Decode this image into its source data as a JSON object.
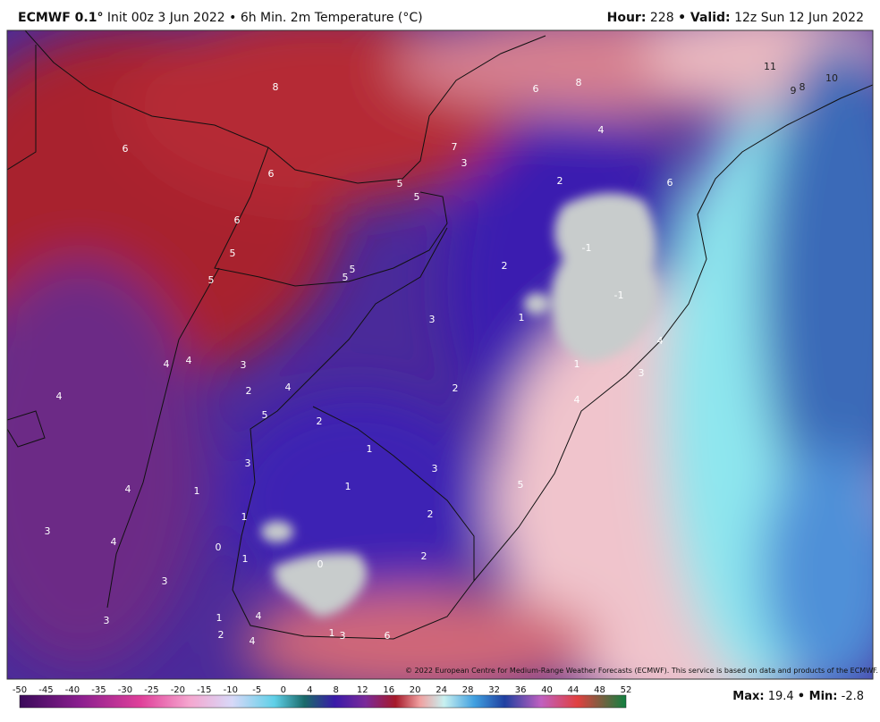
{
  "header": {
    "model": "ECMWF 0.1°",
    "description": "Init 00z 3 Jun 2022 • 6h Min. 2m Temperature (°C)",
    "hour_label": "Hour:",
    "hour": "228",
    "valid_label": "• Valid:",
    "valid": "12z Sun 12 Jun 2022"
  },
  "map": {
    "labels": [
      "6",
      "8",
      "6",
      "6",
      "5",
      "5",
      "5",
      "5",
      "5",
      "5",
      "7",
      "3",
      "6",
      "8",
      "4",
      "2",
      "6",
      "11",
      "10",
      "9",
      "8",
      "-1",
      "-1",
      "2",
      "1",
      "3",
      "4",
      "1",
      "3",
      "2",
      "4",
      "4",
      "4",
      "3",
      "2",
      "4",
      "4",
      "5",
      "2",
      "1",
      "3",
      "5",
      "3",
      "1",
      "1",
      "4",
      "1",
      "2",
      "3",
      "4",
      "0",
      "1",
      "0",
      "2",
      "3",
      "3",
      "1",
      "4",
      "2",
      "4",
      "1",
      "3",
      "6"
    ],
    "copyright": "© 2022 European Centre for Medium-Range Weather Forecasts (ECMWF). This service is based on data and products of the ECMWF."
  },
  "colorbar": {
    "ticks": [
      -50,
      -45,
      -40,
      -35,
      -30,
      -25,
      -20,
      -15,
      -10,
      -5,
      0,
      4,
      8,
      12,
      16,
      20,
      24,
      28,
      32,
      36,
      40,
      44,
      48,
      52
    ]
  },
  "footer": {
    "max_label": "Max:",
    "max": "19.4",
    "min_label": "• Min:",
    "min": "-2.8"
  }
}
